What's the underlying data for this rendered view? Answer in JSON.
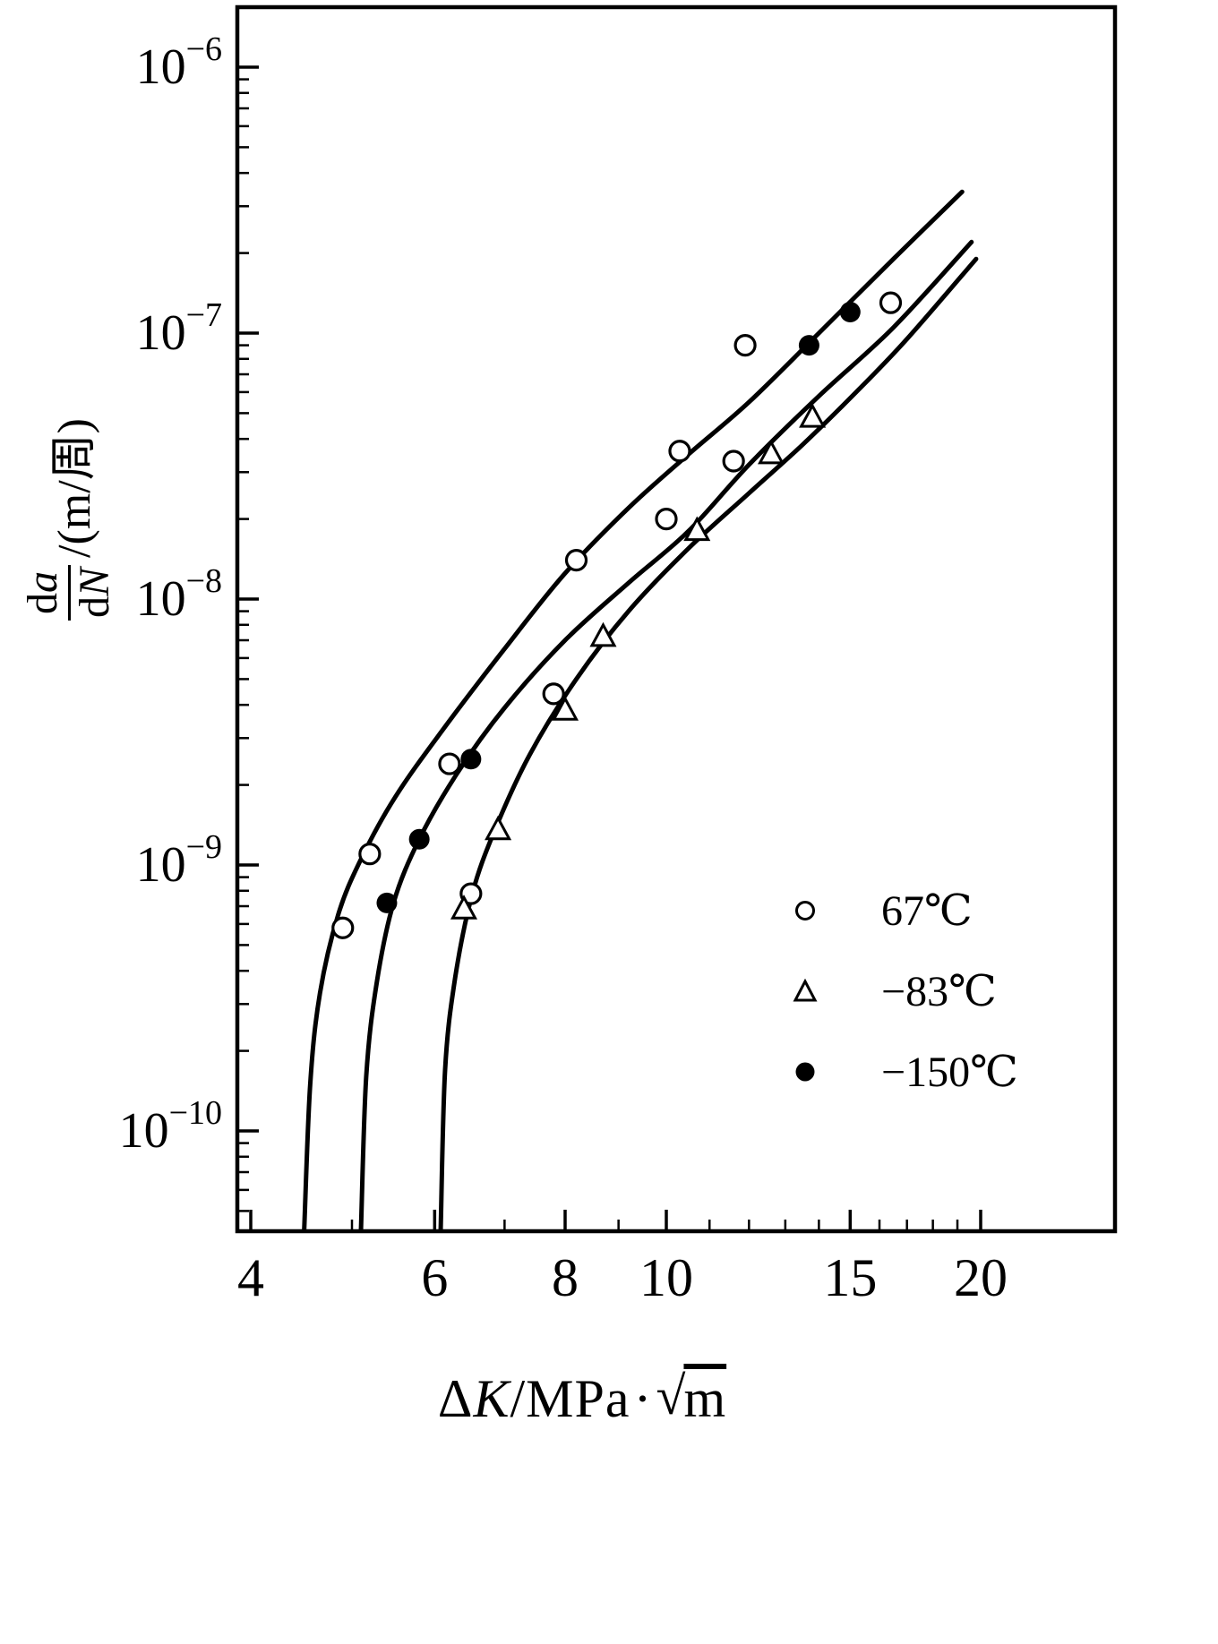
{
  "labels": {
    "y": {
      "numerator_d": "d",
      "numerator_var": "a",
      "denominator_d": "d",
      "denominator_var": "N",
      "suffix": "/(m/周)"
    },
    "x": {
      "delta": "Δ",
      "var": "K",
      "slash": "/",
      "unit": "MPa",
      "dot": "·",
      "radical": "√",
      "radicand": "m"
    }
  },
  "chart_data": {
    "type": "scatter",
    "title": "",
    "x_axis": {
      "label": "ΔK/MPa·√m",
      "scale": "log",
      "tick_values": [
        4,
        6,
        8,
        10,
        15,
        20
      ],
      "minor_tick_values": [
        5,
        7,
        9,
        11,
        12,
        13,
        14,
        16,
        17,
        18,
        19
      ],
      "range": [
        4,
        27
      ]
    },
    "y_axis": {
      "label": "da/dN/(m/周)",
      "scale": "log",
      "tick_exponents": [
        -6,
        -7,
        -8,
        -9,
        -10
      ],
      "range_exponents": [
        -10.4,
        -5.8
      ]
    },
    "legend": {
      "position": "lower-right"
    },
    "series": [
      {
        "id": "67c",
        "name": "67℃",
        "marker": "open-circle",
        "points": [
          [
            4.9,
            5.8e-10
          ],
          [
            5.2,
            1.1e-09
          ],
          [
            6.2,
            2.4e-09
          ],
          [
            6.5,
            7.8e-10
          ],
          [
            7.8,
            4.4e-09
          ],
          [
            8.2,
            1.4e-08
          ],
          [
            10.0,
            2e-08
          ],
          [
            10.3,
            3.6e-08
          ],
          [
            11.6,
            3.3e-08
          ],
          [
            11.9,
            9e-08
          ],
          [
            16.4,
            1.3e-07
          ]
        ],
        "curve": [
          [
            4.5,
            4.2e-11
          ],
          [
            4.56,
            1.5e-10
          ],
          [
            4.66,
            3.3e-10
          ],
          [
            4.85,
            6.5e-10
          ],
          [
            5.1,
            1.05e-09
          ],
          [
            5.5,
            1.8e-09
          ],
          [
            6.1,
            3.2e-09
          ],
          [
            7.0,
            6.5e-09
          ],
          [
            8.0,
            1.25e-08
          ],
          [
            9.2,
            2.2e-08
          ],
          [
            10.5,
            3.5e-08
          ],
          [
            12.0,
            5.5e-08
          ],
          [
            14.0,
            1e-07
          ],
          [
            16.5,
            1.9e-07
          ],
          [
            19.2,
            3.4e-07
          ]
        ]
      },
      {
        "id": "minus83c",
        "name": "−83℃",
        "marker": "open-triangle",
        "points": [
          [
            6.4,
            6.8e-10
          ],
          [
            6.9,
            1.35e-09
          ],
          [
            8.0,
            3.8e-09
          ],
          [
            8.7,
            7.2e-09
          ],
          [
            10.7,
            1.8e-08
          ],
          [
            12.6,
            3.5e-08
          ],
          [
            13.8,
            4.8e-08
          ]
        ],
        "curve": [
          [
            6.08,
            4.2e-11
          ],
          [
            6.14,
            1.7e-10
          ],
          [
            6.28,
            3.8e-10
          ],
          [
            6.52,
            7.8e-10
          ],
          [
            6.85,
            1.35e-09
          ],
          [
            7.4,
            2.6e-09
          ],
          [
            8.2,
            5e-09
          ],
          [
            9.2,
            9e-09
          ],
          [
            10.5,
            1.55e-08
          ],
          [
            12.0,
            2.5e-08
          ],
          [
            13.5,
            3.8e-08
          ],
          [
            15.2,
            6e-08
          ],
          [
            17.0,
            9.5e-08
          ],
          [
            19.8,
            1.9e-07
          ]
        ]
      },
      {
        "id": "minus150c",
        "name": "−150℃",
        "marker": "filled-circle",
        "points": [
          [
            5.4,
            7.2e-10
          ],
          [
            5.8,
            1.25e-09
          ],
          [
            6.5,
            2.5e-09
          ],
          [
            13.7,
            9e-08
          ],
          [
            15.0,
            1.2e-07
          ]
        ],
        "curve": [
          [
            5.1,
            4.2e-11
          ],
          [
            5.16,
            1.6e-10
          ],
          [
            5.28,
            3.6e-10
          ],
          [
            5.48,
            7.2e-10
          ],
          [
            5.8,
            1.25e-09
          ],
          [
            6.3,
            2.2e-09
          ],
          [
            7.0,
            3.9e-09
          ],
          [
            8.0,
            7e-09
          ],
          [
            9.2,
            1.15e-08
          ],
          [
            10.5,
            1.8e-08
          ],
          [
            12.0,
            3.2e-08
          ],
          [
            14.0,
            5.8e-08
          ],
          [
            16.5,
            1.05e-07
          ],
          [
            19.6,
            2.2e-07
          ]
        ]
      }
    ]
  }
}
